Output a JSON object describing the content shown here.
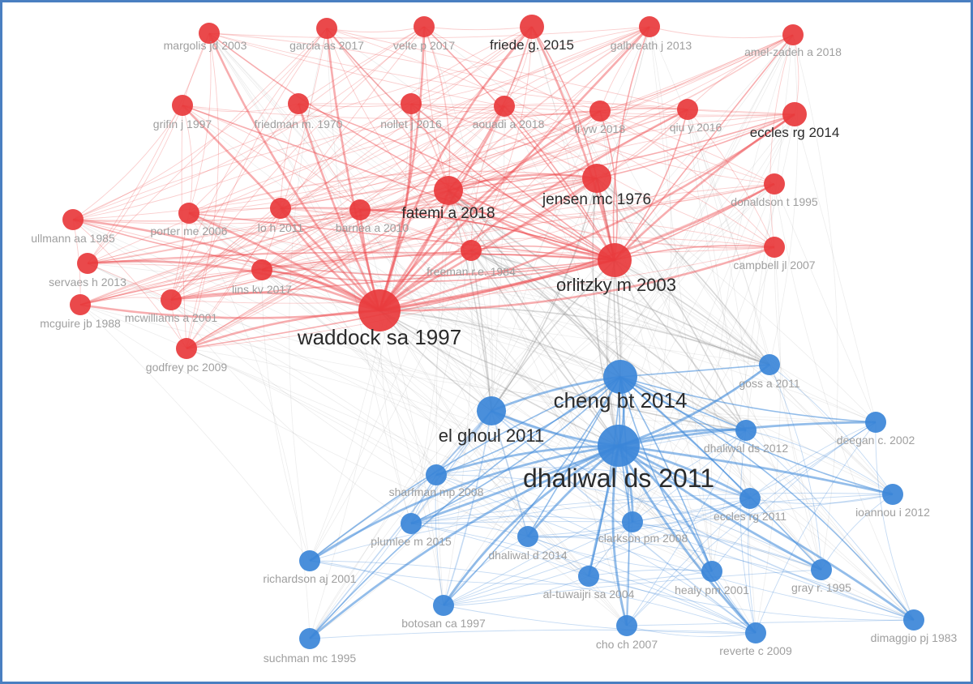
{
  "colors": {
    "cluster_red": "#e8393c",
    "cluster_blue": "#3b86d8",
    "link_red": "#ee4a4d",
    "link_blue": "#3b86d8",
    "link_between": "#8f8f8f",
    "label_major": "#2b2b2b",
    "label_minor": "#9a9a9a",
    "border": "#4a7fc1"
  },
  "nodes": [
    {
      "id": "margolis",
      "label": "margolis jd 2003",
      "cluster": "red",
      "weight": 1
    },
    {
      "id": "garcia",
      "label": "garcia as 2017",
      "cluster": "red",
      "weight": 1
    },
    {
      "id": "velte",
      "label": "velte p 2017",
      "cluster": "red",
      "weight": 1
    },
    {
      "id": "friede",
      "label": "friede g. 2015",
      "cluster": "red",
      "weight": 2
    },
    {
      "id": "galbreath",
      "label": "galbreath j 2013",
      "cluster": "red",
      "weight": 1
    },
    {
      "id": "amelzadeh",
      "label": "amel-zadeh a 2018",
      "cluster": "red",
      "weight": 1
    },
    {
      "id": "grifin",
      "label": "grifin j 1997",
      "cluster": "red",
      "weight": 1
    },
    {
      "id": "friedman",
      "label": "friedman m. 1970",
      "cluster": "red",
      "weight": 1
    },
    {
      "id": "nollet",
      "label": "nollet j 2016",
      "cluster": "red",
      "weight": 1
    },
    {
      "id": "aouadi",
      "label": "aouadi a 2018",
      "cluster": "red",
      "weight": 1
    },
    {
      "id": "liyw",
      "label": "li yw 2018",
      "cluster": "red",
      "weight": 1
    },
    {
      "id": "qiu",
      "label": "qiu y 2016",
      "cluster": "red",
      "weight": 1
    },
    {
      "id": "eccles2014",
      "label": "eccles rg 2014",
      "cluster": "red",
      "weight": 2
    },
    {
      "id": "fatemi",
      "label": "fatemi a 2018",
      "cluster": "red",
      "weight": 3
    },
    {
      "id": "jensen",
      "label": "jensen mc 1976",
      "cluster": "red",
      "weight": 3
    },
    {
      "id": "donaldson",
      "label": "donaldson t 1995",
      "cluster": "red",
      "weight": 1
    },
    {
      "id": "ullmann",
      "label": "ullmann aa 1985",
      "cluster": "red",
      "weight": 1
    },
    {
      "id": "porter",
      "label": "porter me 2006",
      "cluster": "red",
      "weight": 1
    },
    {
      "id": "loh",
      "label": "lo h 2011",
      "cluster": "red",
      "weight": 1
    },
    {
      "id": "barnea",
      "label": "barnea a 2010",
      "cluster": "red",
      "weight": 1
    },
    {
      "id": "freeman",
      "label": "freeman r.e. 1984",
      "cluster": "red",
      "weight": 1
    },
    {
      "id": "orlitzky",
      "label": "orlitzky m 2003",
      "cluster": "red",
      "weight": 4
    },
    {
      "id": "campbell",
      "label": "campbell jl 2007",
      "cluster": "red",
      "weight": 1
    },
    {
      "id": "servaes",
      "label": "servaes h 2013",
      "cluster": "red",
      "weight": 1
    },
    {
      "id": "lins",
      "label": "lins kv 2017",
      "cluster": "red",
      "weight": 1
    },
    {
      "id": "mcguire",
      "label": "mcguire jb 1988",
      "cluster": "red",
      "weight": 1
    },
    {
      "id": "mcwilliams",
      "label": "mcwilliams a 2001",
      "cluster": "red",
      "weight": 1
    },
    {
      "id": "waddock",
      "label": "waddock sa 1997",
      "cluster": "red",
      "weight": 5
    },
    {
      "id": "godfrey",
      "label": "godfrey pc 2009",
      "cluster": "red",
      "weight": 1
    },
    {
      "id": "goss",
      "label": "goss a 2011",
      "cluster": "blue",
      "weight": 1
    },
    {
      "id": "cheng",
      "label": "cheng bt 2014",
      "cluster": "blue",
      "weight": 4
    },
    {
      "id": "elghoul",
      "label": "el ghoul 2011",
      "cluster": "blue",
      "weight": 3
    },
    {
      "id": "dhaliwal2012",
      "label": "dhaliwal ds 2012",
      "cluster": "blue",
      "weight": 1
    },
    {
      "id": "deegan",
      "label": "deegan c. 2002",
      "cluster": "blue",
      "weight": 1
    },
    {
      "id": "dhaliwal2011",
      "label": "dhaliwal ds 2011",
      "cluster": "blue",
      "weight": 5
    },
    {
      "id": "sharfman",
      "label": "sharfman mp 2008",
      "cluster": "blue",
      "weight": 1
    },
    {
      "id": "eccles2011",
      "label": "eccles rg 2011",
      "cluster": "blue",
      "weight": 1
    },
    {
      "id": "ioannou",
      "label": "ioannou i 2012",
      "cluster": "blue",
      "weight": 1
    },
    {
      "id": "plumlee",
      "label": "plumlee m 2015",
      "cluster": "blue",
      "weight": 1
    },
    {
      "id": "clarkson",
      "label": "clarkson pm 2008",
      "cluster": "blue",
      "weight": 1
    },
    {
      "id": "dhaliwald2014",
      "label": "dhaliwal d 2014",
      "cluster": "blue",
      "weight": 1
    },
    {
      "id": "richardson",
      "label": "richardson aj 2001",
      "cluster": "blue",
      "weight": 1
    },
    {
      "id": "altuwaijri",
      "label": "al-tuwaijri sa 2004",
      "cluster": "blue",
      "weight": 1
    },
    {
      "id": "healy",
      "label": "healy pm 2001",
      "cluster": "blue",
      "weight": 1
    },
    {
      "id": "gray",
      "label": "gray r. 1995",
      "cluster": "blue",
      "weight": 1
    },
    {
      "id": "botosan",
      "label": "botosan ca 1997",
      "cluster": "blue",
      "weight": 1
    },
    {
      "id": "suchman",
      "label": "suchman mc 1995",
      "cluster": "blue",
      "weight": 1
    },
    {
      "id": "cho",
      "label": "cho ch 2007",
      "cluster": "blue",
      "weight": 1
    },
    {
      "id": "reverte",
      "label": "reverte c 2009",
      "cluster": "blue",
      "weight": 1
    },
    {
      "id": "dimaggio",
      "label": "dimaggio pj 1983",
      "cluster": "blue",
      "weight": 1
    }
  ]
}
